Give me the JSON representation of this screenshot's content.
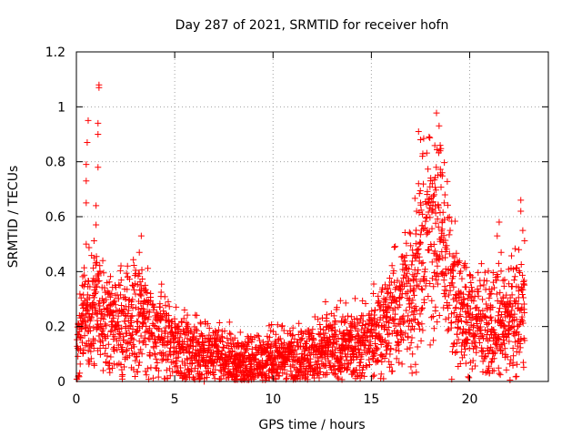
{
  "chart_data": {
    "type": "scatter",
    "title": "Day 287 of 2021, SRMTID for receiver hofn",
    "xlabel": "GPS time / hours",
    "ylabel": "SRMTID / TECUs",
    "xlim": [
      0,
      24
    ],
    "ylim": [
      0,
      1.2
    ],
    "x_ticks": [
      0,
      5,
      10,
      15,
      20
    ],
    "x_tick_labels": [
      "0",
      "5",
      "10",
      "15",
      "20"
    ],
    "y_ticks": [
      0,
      0.2,
      0.4,
      0.6,
      0.8,
      1,
      1.2
    ],
    "y_tick_labels": [
      "0",
      "0.2",
      "0.4",
      "0.6",
      "0.8",
      "1",
      "1.2"
    ],
    "grid": true,
    "marker": "+",
    "series": [
      {
        "name": "hofn",
        "color": "#ff0000",
        "trend_x": [
          0,
          0.5,
          1.0,
          1.5,
          2.0,
          2.5,
          3.0,
          3.5,
          4.0,
          4.5,
          5.0,
          5.5,
          6.0,
          6.5,
          7.0,
          7.5,
          8.0,
          8.5,
          9.0,
          9.5,
          10.0,
          10.5,
          11.0,
          11.5,
          12.0,
          12.5,
          13.0,
          13.5,
          14.0,
          14.5,
          15.0,
          15.5,
          16.0,
          16.5,
          17.0,
          17.5,
          18.0,
          18.5,
          19.0,
          19.5,
          20.0,
          20.5,
          21.0,
          21.5,
          22.0,
          22.5,
          22.8
        ],
        "trend_y": [
          0.12,
          0.24,
          0.27,
          0.2,
          0.2,
          0.23,
          0.26,
          0.23,
          0.19,
          0.16,
          0.14,
          0.13,
          0.11,
          0.1,
          0.09,
          0.08,
          0.075,
          0.07,
          0.07,
          0.075,
          0.08,
          0.09,
          0.1,
          0.1,
          0.1,
          0.11,
          0.12,
          0.13,
          0.13,
          0.14,
          0.16,
          0.19,
          0.23,
          0.28,
          0.34,
          0.42,
          0.58,
          0.55,
          0.36,
          0.27,
          0.22,
          0.2,
          0.2,
          0.22,
          0.22,
          0.25,
          0.28
        ],
        "outliers": [
          [
            0.2,
            0.16
          ],
          [
            0.3,
            0.35
          ],
          [
            0.5,
            0.5
          ],
          [
            0.5,
            0.65
          ],
          [
            0.5,
            0.73
          ],
          [
            0.5,
            0.79
          ],
          [
            0.55,
            0.87
          ],
          [
            0.6,
            0.95
          ],
          [
            0.9,
            0.45
          ],
          [
            1.0,
            0.57
          ],
          [
            1.0,
            0.64
          ],
          [
            1.1,
            0.78
          ],
          [
            1.1,
            0.9
          ],
          [
            1.1,
            0.94
          ],
          [
            1.15,
            1.07
          ],
          [
            1.15,
            1.08
          ],
          [
            1.2,
            0.4
          ],
          [
            2.5,
            0.3
          ],
          [
            2.6,
            0.42
          ],
          [
            3.2,
            0.47
          ],
          [
            3.3,
            0.53
          ],
          [
            3.5,
            0.35
          ],
          [
            2.8,
            0.05
          ],
          [
            6.5,
            0.0
          ],
          [
            17.4,
            0.91
          ],
          [
            17.5,
            0.88
          ],
          [
            17.6,
            0.82
          ],
          [
            17.4,
            0.72
          ],
          [
            17.5,
            0.65
          ],
          [
            17.3,
            0.62
          ],
          [
            18.1,
            0.72
          ],
          [
            18.2,
            0.68
          ],
          [
            18.3,
            0.78
          ],
          [
            18.5,
            0.86
          ],
          [
            18.5,
            0.84
          ],
          [
            18.6,
            0.76
          ],
          [
            18.7,
            0.65
          ],
          [
            21.4,
            0.53
          ],
          [
            21.5,
            0.58
          ],
          [
            21.6,
            0.47
          ],
          [
            22.6,
            0.66
          ],
          [
            22.6,
            0.62
          ],
          [
            22.7,
            0.55
          ],
          [
            22.5,
            0.48
          ],
          [
            21.0,
            0.03
          ],
          [
            13.8,
            0.05
          ],
          [
            15.1,
            0.32
          ]
        ]
      }
    ]
  }
}
